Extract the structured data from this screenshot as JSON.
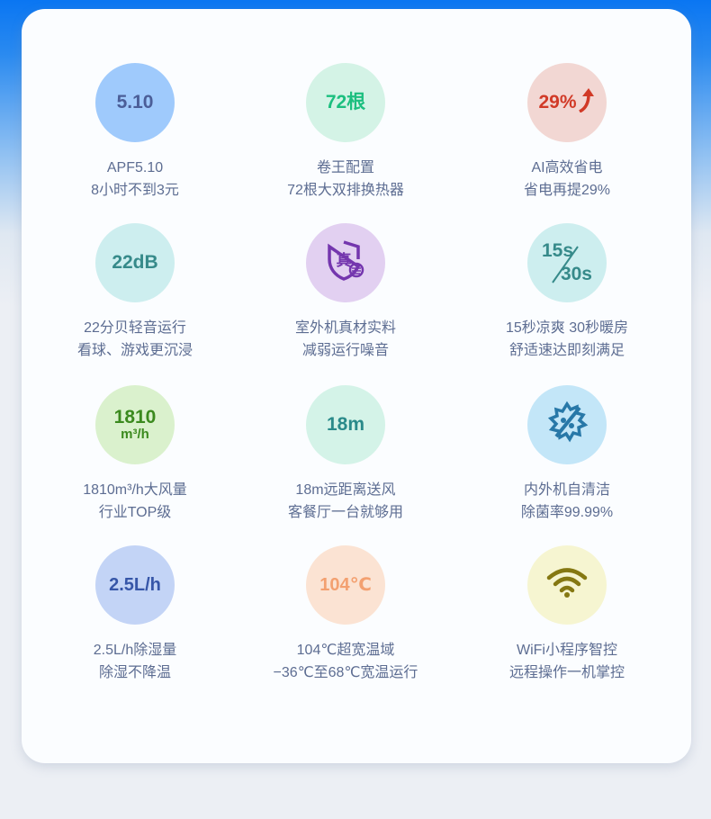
{
  "features": [
    {
      "badge": "5.10",
      "icon": "",
      "line1": "APF5.10",
      "line2": "8小时不到3元",
      "bg": "#9fcafc",
      "fg": "#4b5e98"
    },
    {
      "badge": "72根",
      "icon": "",
      "line1": "卷王配置",
      "line2": "72根大双排换热器",
      "bg": "#d4f3e6",
      "fg": "#1cbf7f"
    },
    {
      "badge": "29%",
      "icon": "arrow-up-icon",
      "line1": "AI高效省电",
      "line2": "省电再提29%",
      "bg": "#f2d7d3",
      "fg": "#d13a27"
    },
    {
      "badge": "22dB",
      "icon": "",
      "line1": "22分贝轻音运行",
      "line2": "看球、游戏更沉浸",
      "bg": "#cdeeef",
      "fg": "#368a8a"
    },
    {
      "badge": "真",
      "icon": "shield-icon",
      "line1": "室外机真材实料",
      "line2": "减弱运行噪音",
      "bg": "#e2d0f1",
      "fg": "#7436ae"
    },
    {
      "badge": "15s",
      "badge2": "30s",
      "icon": "",
      "line1": "15秒凉爽 30秒暖房",
      "line2": "舒适速达即刻满足",
      "bg": "#cdeeef",
      "fg": "#368a8a"
    },
    {
      "badge": "1810",
      "badge2": "m³/h",
      "icon": "",
      "line1": "1810m³/h大风量",
      "line2": "行业TOP级",
      "bg": "#daf1cd",
      "fg": "#3b8a1e"
    },
    {
      "badge": "18m",
      "icon": "",
      "line1": "18m远距离送风",
      "line2": "客餐厅一台就够用",
      "bg": "#d4f3e8",
      "fg": "#2a8a8a"
    },
    {
      "badge": "",
      "icon": "self-clean-icon",
      "line1": "内外机自清洁",
      "line2": "除菌率99.99%",
      "bg": "#c3e6f8",
      "fg": "#2878a8"
    },
    {
      "badge": "2.5L/h",
      "icon": "",
      "line1": "2.5L/h除湿量",
      "line2": "除湿不降温",
      "bg": "#c3d4f6",
      "fg": "#3656a8"
    },
    {
      "badge": "104℃",
      "icon": "",
      "line1": "104℃超宽温域",
      "line2": "−36℃至68℃宽温运行",
      "bg": "#fbe3d3",
      "fg": "#f3a070"
    },
    {
      "badge": "",
      "icon": "wifi-icon",
      "line1": "WiFi小程序智控",
      "line2": "远程操作一机掌控",
      "bg": "#f6f5d1",
      "fg": "#857812"
    }
  ]
}
